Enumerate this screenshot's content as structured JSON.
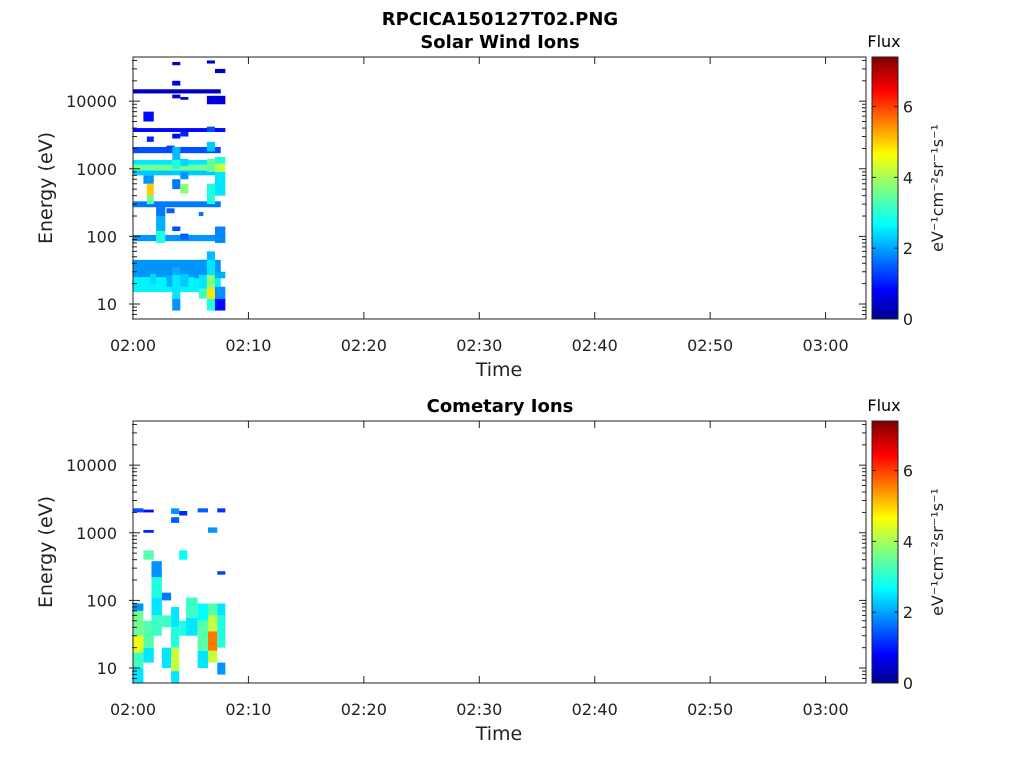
{
  "figure": {
    "title": "RPCICA150127T02.PNG"
  },
  "colorbar": {
    "label_flux": "Flux",
    "unit": "eV⁻¹cm⁻²sr⁻¹s⁻¹",
    "range": [
      0,
      7.4
    ],
    "ticks": [
      "0",
      "2",
      "4",
      "6"
    ],
    "colormap": "jet"
  },
  "chart_data": [
    {
      "type": "heatmap",
      "title": "Solar Wind Ions",
      "xlabel": "Time",
      "ylabel": "Energy (eV)",
      "x_ticks": [
        "02:00",
        "02:10",
        "02:20",
        "02:30",
        "02:40",
        "02:50",
        "03:00"
      ],
      "x_range_minutes": [
        0,
        63.5
      ],
      "y_ticks": [
        "10",
        "100",
        "1000",
        "10000"
      ],
      "y_scale": "log",
      "y_range": [
        6,
        45000
      ],
      "colorbar": {
        "label": "Flux",
        "unit": "eV⁻¹cm⁻²sr⁻¹s⁻¹",
        "range": [
          0,
          7.4
        ]
      },
      "cells": [
        [
          0,
          7.6,
          0,
          15,
          2.2
        ],
        [
          0,
          7.6,
          15,
          30,
          2.7
        ],
        [
          0,
          7.6,
          25,
          45,
          2.0
        ],
        [
          0,
          7.6,
          85,
          105,
          2.0
        ],
        [
          0,
          7.6,
          270,
          330,
          1.8
        ],
        [
          0,
          7.6,
          800,
          950,
          2.4
        ],
        [
          0,
          7.6,
          950,
          1150,
          3.6
        ],
        [
          0,
          7.6,
          1150,
          1350,
          2.6
        ],
        [
          0,
          7.6,
          1700,
          2100,
          1.5
        ],
        [
          0,
          7.6,
          3500,
          4000,
          1.0
        ],
        [
          0,
          7.6,
          13000,
          15000,
          0.5
        ],
        [
          0.9,
          1.8,
          5000,
          7000,
          1.0
        ],
        [
          0.9,
          1.8,
          600,
          800,
          2.0
        ],
        [
          1.2,
          1.8,
          400,
          600,
          5.0
        ],
        [
          1.2,
          1.8,
          300,
          400,
          3.5
        ],
        [
          1.2,
          1.8,
          2500,
          3000,
          1.2
        ],
        [
          1.5,
          2.0,
          20,
          28,
          2.5
        ],
        [
          2.0,
          2.8,
          80,
          120,
          3.0
        ],
        [
          2.0,
          2.8,
          120,
          200,
          2.2
        ],
        [
          2.0,
          2.8,
          200,
          280,
          1.8
        ],
        [
          2.9,
          3.6,
          18,
          27,
          2.2
        ],
        [
          2.9,
          3.6,
          220,
          260,
          1.6
        ],
        [
          2.9,
          3.6,
          1800,
          2200,
          1.4
        ],
        [
          3.4,
          4.1,
          8,
          12,
          2.0
        ],
        [
          3.4,
          4.1,
          12,
          27,
          2.6
        ],
        [
          3.4,
          4.1,
          27,
          35,
          2.2
        ],
        [
          3.4,
          4.1,
          500,
          700,
          1.8
        ],
        [
          3.4,
          4.1,
          1000,
          1350,
          3.0
        ],
        [
          3.4,
          4.1,
          1350,
          2100,
          2.3
        ],
        [
          3.4,
          4.1,
          34000,
          38000,
          0.5
        ],
        [
          3.4,
          4.1,
          17000,
          20000,
          0.8
        ],
        [
          3.4,
          4.1,
          11000,
          12500,
          0.6
        ],
        [
          3.4,
          4.1,
          2800,
          3300,
          1.0
        ],
        [
          3.4,
          4.1,
          120,
          140,
          1.5
        ],
        [
          4.1,
          4.8,
          18,
          28,
          2.4
        ],
        [
          4.1,
          4.8,
          90,
          110,
          1.6
        ],
        [
          4.1,
          4.8,
          430,
          600,
          3.8
        ],
        [
          4.1,
          4.8,
          700,
          900,
          2.0
        ],
        [
          4.1,
          4.8,
          1100,
          1400,
          2.5
        ],
        [
          4.1,
          4.8,
          3000,
          3500,
          1.2
        ],
        [
          4.1,
          4.8,
          10500,
          11500,
          0.6
        ],
        [
          5.3,
          6.0,
          24,
          27,
          2.0
        ],
        [
          5.7,
          6.3,
          40,
          45,
          2.0
        ],
        [
          5.7,
          6.1,
          200,
          230,
          1.8
        ],
        [
          5.7,
          6.7,
          12,
          17,
          3.2
        ],
        [
          5.7,
          6.7,
          17,
          27,
          2.6
        ],
        [
          6.4,
          7.1,
          8,
          12,
          3.0
        ],
        [
          6.4,
          7.1,
          12,
          17,
          4.8
        ],
        [
          6.4,
          7.1,
          17,
          27,
          3.8
        ],
        [
          6.4,
          7.1,
          27,
          45,
          2.6
        ],
        [
          6.4,
          7.1,
          45,
          60,
          2.3
        ],
        [
          6.4,
          7.1,
          300,
          600,
          3.0
        ],
        [
          6.4,
          7.1,
          900,
          1400,
          3.5
        ],
        [
          6.4,
          7.1,
          1800,
          2500,
          2.4
        ],
        [
          6.4,
          7.1,
          3500,
          4200,
          1.5
        ],
        [
          6.4,
          7.1,
          9000,
          12000,
          0.7
        ],
        [
          6.4,
          7.1,
          36000,
          40000,
          0.5
        ],
        [
          7.1,
          8.0,
          8,
          12,
          1.0
        ],
        [
          7.1,
          8.0,
          12,
          18,
          2.0
        ],
        [
          7.1,
          8.0,
          24,
          30,
          2.2
        ],
        [
          7.1,
          8.0,
          80,
          140,
          1.9
        ],
        [
          7.1,
          8.0,
          400,
          900,
          2.6
        ],
        [
          7.1,
          8.0,
          900,
          1200,
          4.2
        ],
        [
          7.1,
          8.0,
          1200,
          1500,
          3.0
        ],
        [
          7.1,
          8.0,
          3500,
          4000,
          1.0
        ],
        [
          7.1,
          8.0,
          9000,
          12000,
          0.6
        ],
        [
          7.1,
          8.0,
          26000,
          30000,
          0.5
        ]
      ]
    },
    {
      "type": "heatmap",
      "title": "Cometary Ions",
      "xlabel": "Time",
      "ylabel": "Energy (eV)",
      "x_ticks": [
        "02:00",
        "02:10",
        "02:20",
        "02:30",
        "02:40",
        "02:50",
        "03:00"
      ],
      "x_range_minutes": [
        0,
        63.5
      ],
      "y_ticks": [
        "10",
        "100",
        "1000",
        "10000"
      ],
      "y_scale": "log",
      "y_range": [
        6,
        45000
      ],
      "colorbar": {
        "label": "Flux",
        "unit": "eV⁻¹cm⁻²sr⁻¹s⁻¹",
        "range": [
          0,
          7.4
        ]
      },
      "cells": [
        [
          0,
          0.9,
          6,
          10,
          2.6
        ],
        [
          0,
          0.9,
          10,
          17,
          3.2
        ],
        [
          0,
          0.9,
          17,
          30,
          4.5
        ],
        [
          0,
          0.9,
          30,
          70,
          3.6
        ],
        [
          0,
          0.9,
          70,
          90,
          2.0
        ],
        [
          0,
          0.9,
          2000,
          2300,
          1.5
        ],
        [
          0.9,
          1.8,
          12,
          20,
          2.6
        ],
        [
          0.9,
          1.8,
          20,
          50,
          3.4
        ],
        [
          0.9,
          1.8,
          400,
          550,
          3.4
        ],
        [
          0.9,
          1.8,
          2000,
          2200,
          1.0
        ],
        [
          0.9,
          1.8,
          1000,
          1100,
          1.2
        ],
        [
          1.6,
          2.5,
          30,
          60,
          3.2
        ],
        [
          1.6,
          2.5,
          110,
          220,
          3.0
        ],
        [
          1.6,
          2.5,
          220,
          380,
          2.0
        ],
        [
          1.6,
          2.5,
          60,
          110,
          2.6
        ],
        [
          2.5,
          3.3,
          10,
          20,
          2.6
        ],
        [
          2.5,
          3.3,
          40,
          60,
          3.2
        ],
        [
          2.5,
          3.3,
          100,
          130,
          1.8
        ],
        [
          3.3,
          4.0,
          6,
          9,
          2.6
        ],
        [
          3.3,
          4.0,
          9,
          20,
          4.2
        ],
        [
          3.3,
          4.0,
          20,
          40,
          3.0
        ],
        [
          3.3,
          4.0,
          40,
          80,
          2.6
        ],
        [
          3.3,
          4.0,
          1900,
          2300,
          2.0
        ],
        [
          3.3,
          4.0,
          1400,
          1700,
          1.6
        ],
        [
          4.0,
          4.7,
          30,
          50,
          3.0
        ],
        [
          4.0,
          4.7,
          400,
          550,
          2.8
        ],
        [
          4.0,
          4.7,
          1800,
          2100,
          1.2
        ],
        [
          4.6,
          5.6,
          55,
          110,
          3.2
        ],
        [
          4.6,
          5.6,
          30,
          55,
          2.6
        ],
        [
          5.6,
          6.5,
          10,
          18,
          2.6
        ],
        [
          5.6,
          6.5,
          18,
          50,
          3.4
        ],
        [
          5.6,
          6.5,
          50,
          90,
          2.8
        ],
        [
          5.6,
          6.5,
          2000,
          2300,
          1.6
        ],
        [
          6.5,
          7.3,
          12,
          18,
          4.2
        ],
        [
          6.5,
          7.3,
          18,
          35,
          5.6
        ],
        [
          6.5,
          7.3,
          35,
          60,
          4.2
        ],
        [
          6.5,
          7.3,
          60,
          90,
          3.4
        ],
        [
          6.5,
          7.3,
          1000,
          1200,
          2.0
        ],
        [
          7.3,
          8.0,
          8,
          12,
          2.0
        ],
        [
          7.3,
          8.0,
          20,
          60,
          3.0
        ],
        [
          7.3,
          8.0,
          60,
          90,
          2.6
        ],
        [
          7.3,
          8.0,
          240,
          270,
          1.4
        ],
        [
          7.3,
          8.0,
          2000,
          2300,
          1.3
        ]
      ]
    }
  ]
}
